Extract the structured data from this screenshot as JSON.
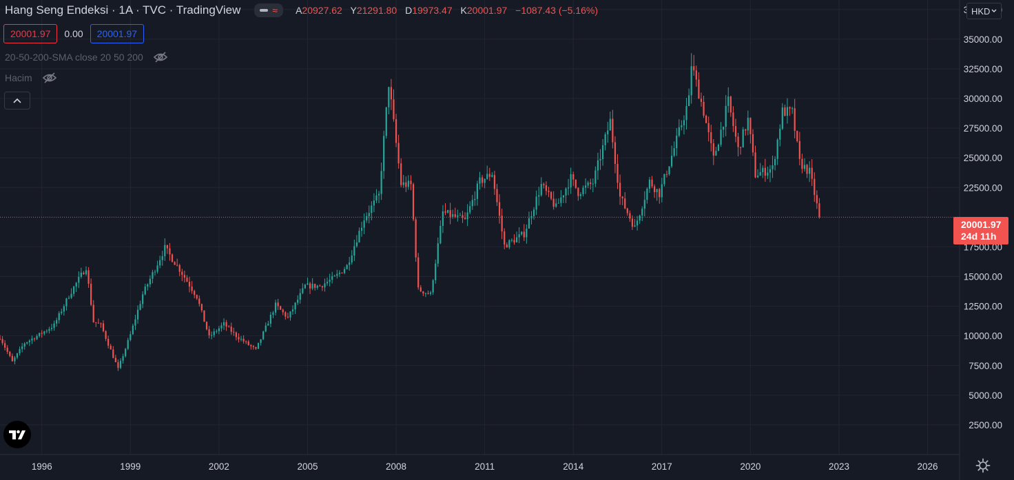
{
  "legend": {
    "title": "Hang Seng Endeksi · 1A · TVC · TradingView",
    "ohlc": [
      {
        "key": "A",
        "value": "20927.62"
      },
      {
        "key": "Y",
        "value": "21291.80"
      },
      {
        "key": "D",
        "value": "19973.47"
      },
      {
        "key": "K",
        "value": "20001.97"
      }
    ],
    "change": "−1087.43 (−5.16%)",
    "price_sell": "20001.97",
    "price_spread": "0.00",
    "price_buy": "20001.97"
  },
  "indicators": [
    {
      "label": "20-50-200-SMA close 20 50 200"
    },
    {
      "label": "Hacim"
    }
  ],
  "currency_button": "HKD",
  "last_price": {
    "price": "20001.97",
    "countdown": "24d 11h"
  },
  "colors": {
    "up": "#26a69a",
    "down": "#ef5350",
    "background": "#161a25",
    "grid": "#232632",
    "accent_blue": "#2962ff"
  },
  "icons": [
    "eye-off-icon",
    "chevron-up-icon",
    "chevron-down-icon",
    "tradingview-logo-icon",
    "gear-icon",
    "wave-icon"
  ],
  "chart_data": {
    "type": "candlestick",
    "interval": "1 month",
    "y_axis_labels": [
      "37500.00",
      "35000.00",
      "32500.00",
      "30000.00",
      "27500.00",
      "25000.00",
      "22500.00",
      "17500.00",
      "15000.00",
      "12500.00",
      "10000.00",
      "7500.00",
      "5000.00",
      "2500.00"
    ],
    "x_axis_labels": [
      "1996",
      "1999",
      "2002",
      "2005",
      "2008",
      "2011",
      "2014",
      "2017",
      "2020",
      "2023",
      "2026"
    ],
    "x_range": [
      "1994-08",
      "2027-02"
    ],
    "ylim": [
      0,
      38300
    ],
    "last_close": 20001.97,
    "close_points": [
      [
        "1994-08",
        9900
      ],
      [
        "1995-01",
        7800
      ],
      [
        "1995-06",
        9400
      ],
      [
        "1995-12",
        10100
      ],
      [
        "1996-06",
        10900
      ],
      [
        "1996-12",
        13400
      ],
      [
        "1997-07",
        15800
      ],
      [
        "1997-10",
        11200
      ],
      [
        "1998-01",
        10900
      ],
      [
        "1998-08",
        7200
      ],
      [
        "1999-01",
        10100
      ],
      [
        "1999-06",
        13500
      ],
      [
        "2000-03",
        17400
      ],
      [
        "2000-09",
        15600
      ],
      [
        "2001-04",
        13300
      ],
      [
        "2001-09",
        9900
      ],
      [
        "2002-03",
        11000
      ],
      [
        "2002-08",
        10000
      ],
      [
        "2003-04",
        8800
      ],
      [
        "2003-12",
        12600
      ],
      [
        "2004-05",
        11500
      ],
      [
        "2004-12",
        14200
      ],
      [
        "2005-06",
        14200
      ],
      [
        "2005-12",
        14900
      ],
      [
        "2006-05",
        15900
      ],
      [
        "2006-12",
        19900
      ],
      [
        "2007-06",
        21800
      ],
      [
        "2007-10",
        31300
      ],
      [
        "2008-03",
        22800
      ],
      [
        "2008-07",
        22700
      ],
      [
        "2008-10",
        13900
      ],
      [
        "2009-03",
        13500
      ],
      [
        "2009-08",
        20400
      ],
      [
        "2010-05",
        19700
      ],
      [
        "2010-11",
        23000
      ],
      [
        "2011-04",
        23700
      ],
      [
        "2011-09",
        17600
      ],
      [
        "2012-05",
        18600
      ],
      [
        "2012-12",
        22700
      ],
      [
        "2013-06",
        20800
      ],
      [
        "2013-12",
        23300
      ],
      [
        "2014-03",
        22100
      ],
      [
        "2014-09",
        22900
      ],
      [
        "2015-04",
        28100
      ],
      [
        "2015-08",
        21700
      ],
      [
        "2016-02",
        19100
      ],
      [
        "2016-08",
        23000
      ],
      [
        "2016-12",
        22000
      ],
      [
        "2017-06",
        25800
      ],
      [
        "2017-12",
        29900
      ],
      [
        "2018-01",
        32900
      ],
      [
        "2018-06",
        28900
      ],
      [
        "2018-10",
        24900
      ],
      [
        "2019-04",
        29700
      ],
      [
        "2019-08",
        25700
      ],
      [
        "2019-12",
        28200
      ],
      [
        "2020-03",
        23600
      ],
      [
        "2020-10",
        24100
      ],
      [
        "2021-02",
        28900
      ],
      [
        "2021-06",
        28800
      ],
      [
        "2021-09",
        24600
      ],
      [
        "2022-01",
        23800
      ],
      [
        "2022-03",
        22000
      ],
      [
        "2022-05",
        20002
      ]
    ]
  }
}
